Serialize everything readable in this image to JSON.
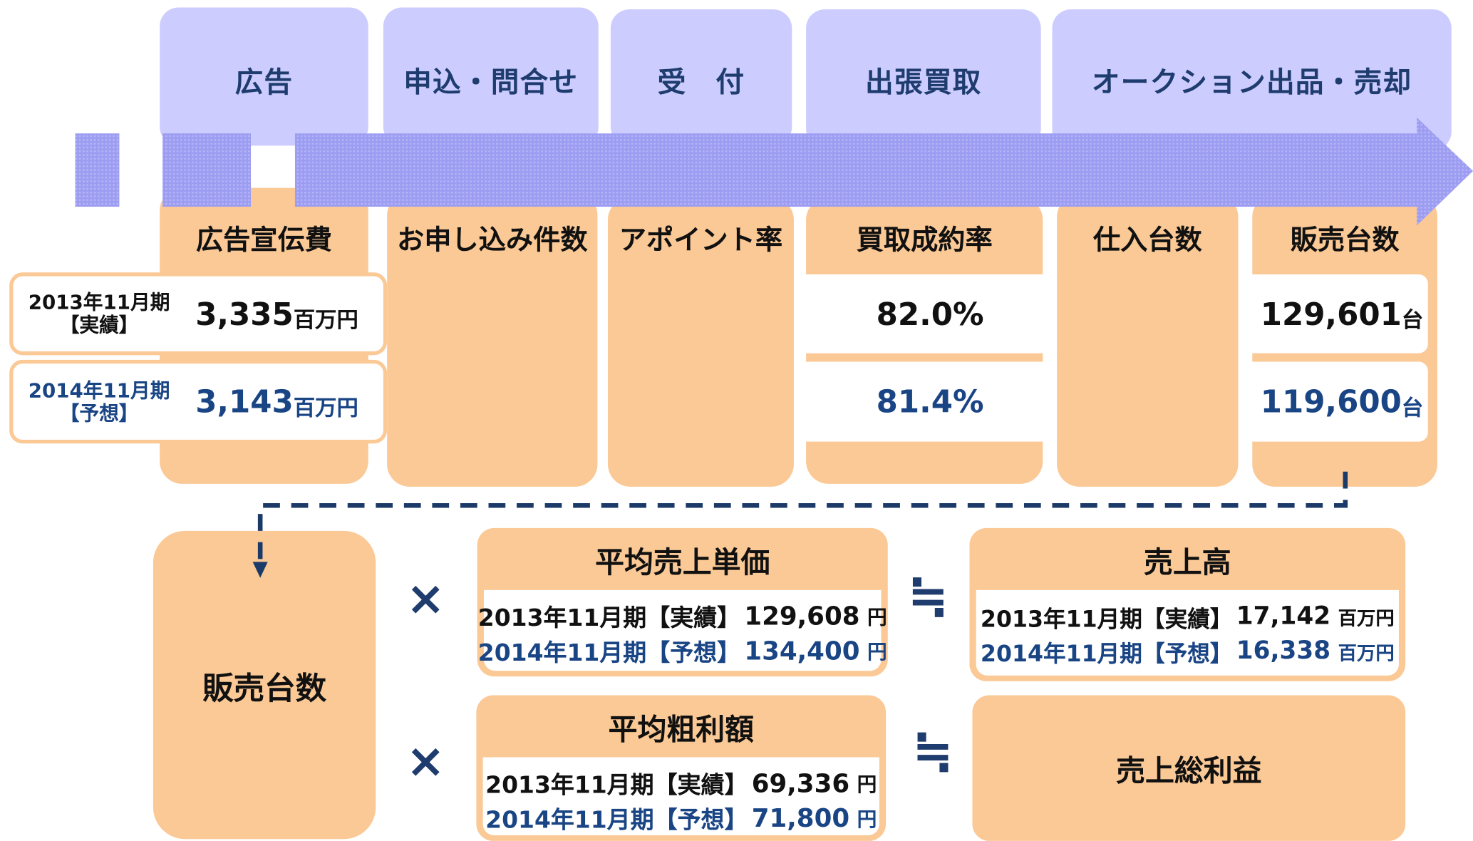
{
  "stages": [
    "広告",
    "申込・問合せ",
    "受　付",
    "出張買取",
    "オークション出品・売却"
  ],
  "metrics": [
    "広告宣伝費",
    "お申し込み件数",
    "アポイント率",
    "買取成約率",
    "仕入台数",
    "販売台数"
  ],
  "periods": [
    {
      "period": "2013年11月期",
      "kind": "【実績】"
    },
    {
      "period": "2014年11月期",
      "kind": "【予想】"
    }
  ],
  "ad_cost": {
    "unit": "百万円",
    "values": [
      "3,335",
      "3,143"
    ]
  },
  "purchase_rate": {
    "values": [
      "82.0%",
      "81.4%"
    ]
  },
  "units_sold": {
    "unit": "台",
    "values": [
      "129,601",
      "119,600"
    ]
  },
  "formula": {
    "base": "販売台数",
    "times": "×",
    "approx": "≒",
    "avg_price": {
      "label": "平均売上単価",
      "rows": [
        {
          "period": "2013年11月期【実績】",
          "value": "129,608",
          "unit": "円"
        },
        {
          "period": "2014年11月期【予想】",
          "value": "134,400",
          "unit": "円"
        }
      ]
    },
    "sales": {
      "label": "売上高",
      "rows": [
        {
          "period": "2013年11月期【実績】",
          "value": "17,142",
          "unit": "百万円"
        },
        {
          "period": "2014年11月期【予想】",
          "value": "16,338",
          "unit": "百万円"
        }
      ]
    },
    "avg_profit": {
      "label": "平均粗利額",
      "rows": [
        {
          "period": "2013年11月期【実績】",
          "value": "69,336",
          "unit": "円"
        },
        {
          "period": "2014年11月期【予想】",
          "value": "71,800",
          "unit": "円"
        }
      ]
    },
    "gross_profit": {
      "label": "売上総利益"
    }
  }
}
